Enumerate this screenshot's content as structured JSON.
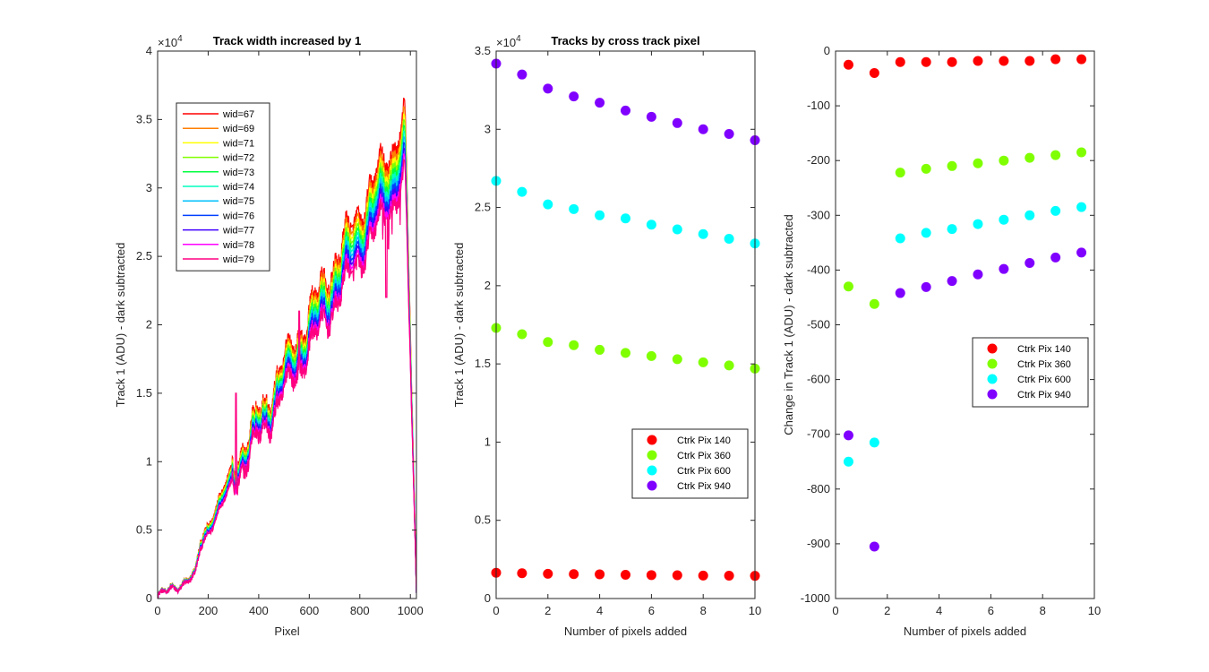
{
  "chart_data": [
    {
      "type": "line",
      "title": "Track width increased by 1",
      "xlabel": "Pixel",
      "ylabel": "Track 1 (ADU) - dark subtracted",
      "xlim": [
        0,
        1024
      ],
      "ylim": [
        0,
        4
      ],
      "y_exponent": "×10",
      "y_exponent_power": "4",
      "xticks": [
        0,
        200,
        400,
        600,
        800,
        1000
      ],
      "xtick_labels": [
        "0",
        "200",
        "400",
        "600",
        "800",
        "1000"
      ],
      "yticks": [
        0,
        0.5,
        1,
        1.5,
        2,
        2.5,
        3,
        3.5,
        4
      ],
      "ytick_labels": [
        "0",
        "0.5",
        "1",
        "1.5",
        "2",
        "2.5",
        "3",
        "3.5",
        "4"
      ],
      "legend_position": "top-left",
      "series": [
        {
          "name": "wid=67",
          "color": "#ff0000",
          "peak": 3.5
        },
        {
          "name": "wid=69",
          "color": "#ff7f00",
          "peak": 3.44
        },
        {
          "name": "wid=71",
          "color": "#ffff00",
          "peak": 3.39
        },
        {
          "name": "wid=72",
          "color": "#80ff00",
          "peak": 3.35
        },
        {
          "name": "wid=73",
          "color": "#00ff40",
          "peak": 3.31
        },
        {
          "name": "wid=74",
          "color": "#00ffbf",
          "peak": 3.27
        },
        {
          "name": "wid=75",
          "color": "#00bfff",
          "peak": 3.23
        },
        {
          "name": "wid=76",
          "color": "#0040ff",
          "peak": 3.19
        },
        {
          "name": "wid=77",
          "color": "#4000ff",
          "peak": 3.15
        },
        {
          "name": "wid=78",
          "color": "#ff00ff",
          "peak": 3.11
        },
        {
          "name": "wid=79",
          "color": "#ff0080",
          "peak": 3.07
        }
      ]
    },
    {
      "type": "scatter",
      "title": "Tracks by cross track pixel",
      "xlabel": "Number of pixels added",
      "ylabel": "Track 1 (ADU) - dark subtracted",
      "xlim": [
        0,
        10
      ],
      "ylim": [
        0,
        3.5
      ],
      "y_exponent": "×10",
      "y_exponent_power": "4",
      "xticks": [
        0,
        2,
        4,
        6,
        8,
        10
      ],
      "xtick_labels": [
        "0",
        "2",
        "4",
        "6",
        "8",
        "10"
      ],
      "yticks": [
        0,
        0.5,
        1,
        1.5,
        2,
        2.5,
        3,
        3.5
      ],
      "ytick_labels": [
        "0",
        "0.5",
        "1",
        "1.5",
        "2",
        "2.5",
        "3",
        "3.5"
      ],
      "legend_position": "bottom-right",
      "x": [
        0,
        1,
        2,
        3,
        4,
        5,
        6,
        7,
        8,
        9,
        10
      ],
      "series": [
        {
          "name": "Ctrk Pix 140",
          "color": "#ff0000",
          "values": [
            0.165,
            0.162,
            0.158,
            0.156,
            0.155,
            0.152,
            0.15,
            0.149,
            0.147,
            0.146,
            0.145
          ]
        },
        {
          "name": "Ctrk Pix 360",
          "color": "#80ff00",
          "values": [
            1.73,
            1.69,
            1.64,
            1.62,
            1.59,
            1.57,
            1.55,
            1.53,
            1.51,
            1.49,
            1.47
          ]
        },
        {
          "name": "Ctrk Pix 600",
          "color": "#00ffff",
          "values": [
            2.67,
            2.6,
            2.52,
            2.49,
            2.45,
            2.43,
            2.39,
            2.36,
            2.33,
            2.3,
            2.27
          ]
        },
        {
          "name": "Ctrk Pix 940",
          "color": "#8000ff",
          "values": [
            3.42,
            3.35,
            3.26,
            3.21,
            3.17,
            3.12,
            3.08,
            3.04,
            3.0,
            2.97,
            2.93
          ]
        }
      ]
    },
    {
      "type": "scatter",
      "title": "",
      "xlabel": "Number of pixels added",
      "ylabel": "Change in Track 1 (ADU) - dark subtracted",
      "xlim": [
        0,
        10
      ],
      "ylim": [
        -1000,
        0
      ],
      "xticks": [
        0,
        2,
        4,
        6,
        8,
        10
      ],
      "xtick_labels": [
        "0",
        "2",
        "4",
        "6",
        "8",
        "10"
      ],
      "yticks": [
        0,
        -100,
        -200,
        -300,
        -400,
        -500,
        -600,
        -700,
        -800,
        -900,
        -1000
      ],
      "ytick_labels": [
        "0",
        "-100",
        "-200",
        "-300",
        "-400",
        "-500",
        "-600",
        "-700",
        "-800",
        "-900",
        "-1000"
      ],
      "legend_position": "right",
      "x": [
        0.5,
        1.5,
        2.5,
        3.5,
        4.5,
        5.5,
        6.5,
        7.5,
        8.5,
        9.5
      ],
      "series": [
        {
          "name": "Ctrk Pix 140",
          "color": "#ff0000",
          "values": [
            -25,
            -40,
            -20,
            -20,
            -20,
            -18,
            -18,
            -18,
            -15,
            -15
          ]
        },
        {
          "name": "Ctrk Pix 360",
          "color": "#80ff00",
          "values": [
            -430,
            -462,
            -222,
            -215,
            -210,
            -205,
            -200,
            -195,
            -190,
            -185
          ]
        },
        {
          "name": "Ctrk Pix 600",
          "color": "#00ffff",
          "values": [
            -750,
            -715,
            -342,
            -332,
            -325,
            -316,
            -308,
            -300,
            -292,
            -285
          ]
        },
        {
          "name": "Ctrk Pix 940",
          "color": "#8000ff",
          "values": [
            -702,
            -905,
            -442,
            -431,
            -420,
            -408,
            -398,
            -387,
            -377,
            -368
          ]
        }
      ]
    }
  ]
}
